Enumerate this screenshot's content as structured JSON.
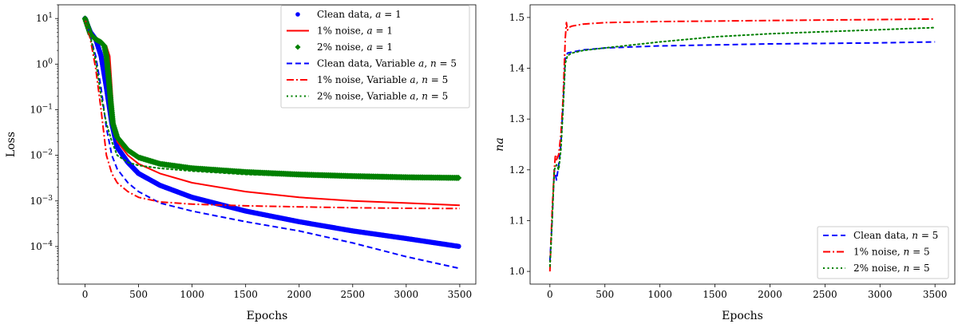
{
  "chart_data": [
    {
      "type": "line",
      "title": "",
      "xlabel": "Epochs",
      "ylabel": "Loss",
      "yscale": "log",
      "xlim": [
        -250,
        3650
      ],
      "ylim": [
        1.5e-05,
        20
      ],
      "xticks": [
        0,
        500,
        1000,
        1500,
        2000,
        2500,
        3000,
        3500
      ],
      "xtick_labels": [
        "0",
        "500",
        "1000",
        "1500",
        "2000",
        "2500",
        "3000",
        "3500"
      ],
      "yticks": [
        0.0001,
        0.001,
        0.01,
        0.1,
        1,
        10
      ],
      "ytick_labels": [
        {
          "base": "10",
          "exp": "−4"
        },
        {
          "base": "10",
          "exp": "−3"
        },
        {
          "base": "10",
          "exp": "−2"
        },
        {
          "base": "10",
          "exp": "−1"
        },
        {
          "base": "10",
          "exp": "0"
        },
        {
          "base": "10",
          "exp": "1"
        }
      ],
      "grid": false,
      "legend_position": "top-right",
      "series": [
        {
          "name": "Clean data, a = 1",
          "legend": {
            "pre": "Clean data, ",
            "var": "a",
            "post": " = 1"
          },
          "style": "dots",
          "color": "#0000ff",
          "x": [
            0,
            50,
            100,
            150,
            200,
            250,
            300,
            400,
            500,
            700,
            1000,
            1500,
            2000,
            2500,
            3000,
            3500
          ],
          "y": [
            10,
            5,
            3.5,
            1.5,
            0.3,
            0.05,
            0.015,
            0.007,
            0.004,
            0.0022,
            0.0012,
            0.0006,
            0.00035,
            0.00022,
            0.00015,
            0.0001
          ]
        },
        {
          "name": "1% noise, a = 1",
          "legend": {
            "pre": "1% noise, ",
            "var": "a",
            "post": " = 1"
          },
          "style": "solid",
          "color": "#ff0000",
          "x": [
            0,
            50,
            100,
            150,
            200,
            230,
            250,
            270,
            300,
            400,
            500,
            700,
            1000,
            1500,
            2000,
            2500,
            3000,
            3500
          ],
          "y": [
            10,
            4.5,
            3.5,
            3.0,
            2.5,
            1.5,
            0.3,
            0.05,
            0.02,
            0.01,
            0.0065,
            0.004,
            0.0025,
            0.0016,
            0.0012,
            0.001,
            0.0009,
            0.0008
          ]
        },
        {
          "name": "2% noise, a = 1",
          "legend": {
            "pre": "2% noise, ",
            "var": "a",
            "post": " = 1"
          },
          "style": "diamonds",
          "color": "#008000",
          "x": [
            0,
            50,
            100,
            150,
            180,
            200,
            220,
            240,
            260,
            300,
            400,
            500,
            700,
            1000,
            1500,
            2000,
            2500,
            3000,
            3500
          ],
          "y": [
            10,
            4.5,
            3.5,
            3.0,
            2.5,
            1.5,
            0.5,
            0.15,
            0.05,
            0.025,
            0.013,
            0.009,
            0.0065,
            0.0052,
            0.0043,
            0.0038,
            0.0035,
            0.0033,
            0.0032
          ]
        },
        {
          "name": "Clean data, Variable a, n = 5",
          "legend": {
            "pre": "Clean data, Variable ",
            "var": "a",
            "mid": ", ",
            "var2": "n",
            "post": " = 5"
          },
          "style": "dashed",
          "color": "#0000ff",
          "x": [
            0,
            50,
            100,
            150,
            200,
            250,
            300,
            400,
            500,
            700,
            1000,
            1500,
            2000,
            2500,
            3000,
            3500
          ],
          "y": [
            10,
            4,
            1.5,
            0.3,
            0.04,
            0.01,
            0.005,
            0.0025,
            0.0016,
            0.0009,
            0.0006,
            0.00035,
            0.00022,
            0.00012,
            6e-05,
            3.3e-05
          ]
        },
        {
          "name": "1% noise, Variable a, n = 5",
          "legend": {
            "pre": "1% noise, Variable ",
            "var": "a",
            "mid": ", ",
            "var2": "n",
            "post": " = 5"
          },
          "style": "dashdot",
          "color": "#ff0000",
          "x": [
            0,
            50,
            100,
            150,
            200,
            250,
            300,
            400,
            500,
            700,
            1000,
            1500,
            2000,
            2500,
            3000,
            3500
          ],
          "y": [
            10,
            3.5,
            0.8,
            0.1,
            0.01,
            0.004,
            0.0025,
            0.0016,
            0.0012,
            0.00095,
            0.00085,
            0.00078,
            0.00074,
            0.00071,
            0.00069,
            0.00068
          ]
        },
        {
          "name": "2% noise, Variable a, n = 5",
          "legend": {
            "pre": "2% noise, Variable ",
            "var": "a",
            "mid": ", ",
            "var2": "n",
            "post": " = 5"
          },
          "style": "dotted",
          "color": "#008000",
          "x": [
            0,
            50,
            100,
            150,
            200,
            250,
            300,
            400,
            500,
            700,
            1000,
            1500,
            2000,
            2500,
            3000,
            3500
          ],
          "y": [
            10,
            4,
            1.2,
            0.2,
            0.05,
            0.02,
            0.01,
            0.007,
            0.006,
            0.0052,
            0.0045,
            0.0038,
            0.0035,
            0.0033,
            0.0032,
            0.0031
          ]
        }
      ]
    },
    {
      "type": "line",
      "title": "",
      "xlabel": "Epochs",
      "ylabel": "na",
      "yscale": "linear",
      "xlim": [
        -180,
        3680
      ],
      "ylim": [
        0.975,
        1.525
      ],
      "xticks": [
        0,
        500,
        1000,
        1500,
        2000,
        2500,
        3000,
        3500
      ],
      "xtick_labels": [
        "0",
        "500",
        "1000",
        "1500",
        "2000",
        "2500",
        "3000",
        "3500"
      ],
      "yticks": [
        1.0,
        1.1,
        1.2,
        1.3,
        1.4,
        1.5
      ],
      "ytick_labels": [
        "1.0",
        "1.1",
        "1.2",
        "1.3",
        "1.4",
        "1.5"
      ],
      "grid": false,
      "legend_position": "bottom-right",
      "series": [
        {
          "name": "Clean data, n = 5",
          "legend": {
            "pre": "Clean data, ",
            "var": "n",
            "post": " = 5"
          },
          "style": "dashed",
          "color": "#0000ff",
          "x": [
            0,
            10,
            20,
            40,
            60,
            80,
            100,
            120,
            140,
            160,
            200,
            300,
            500,
            1000,
            1500,
            2000,
            2500,
            3000,
            3500
          ],
          "y": [
            1.02,
            1.06,
            1.1,
            1.2,
            1.18,
            1.21,
            1.25,
            1.33,
            1.42,
            1.43,
            1.432,
            1.436,
            1.44,
            1.444,
            1.446,
            1.448,
            1.449,
            1.45,
            1.452
          ]
        },
        {
          "name": "1% noise, n = 5",
          "legend": {
            "pre": "1% noise, ",
            "var": "n",
            "post": " = 5"
          },
          "style": "dashdot",
          "color": "#ff0000",
          "x": [
            0,
            10,
            20,
            40,
            50,
            60,
            80,
            100,
            120,
            140,
            150,
            160,
            170,
            200,
            300,
            500,
            1000,
            1500,
            2000,
            2500,
            3000,
            3500
          ],
          "y": [
            1.0,
            1.06,
            1.12,
            1.2,
            1.23,
            1.22,
            1.23,
            1.27,
            1.34,
            1.46,
            1.49,
            1.475,
            1.48,
            1.483,
            1.487,
            1.49,
            1.492,
            1.493,
            1.494,
            1.495,
            1.496,
            1.497
          ]
        },
        {
          "name": "2% noise, n = 5",
          "legend": {
            "pre": "2% noise, ",
            "var": "n",
            "post": " = 5"
          },
          "style": "dotted",
          "color": "#008000",
          "x": [
            0,
            10,
            20,
            40,
            60,
            80,
            100,
            120,
            140,
            160,
            200,
            300,
            500,
            1000,
            1500,
            2000,
            2500,
            3000,
            3500
          ],
          "y": [
            1.01,
            1.05,
            1.1,
            1.2,
            1.21,
            1.2,
            1.24,
            1.32,
            1.41,
            1.425,
            1.43,
            1.435,
            1.44,
            1.452,
            1.462,
            1.468,
            1.472,
            1.476,
            1.48
          ]
        }
      ]
    }
  ]
}
